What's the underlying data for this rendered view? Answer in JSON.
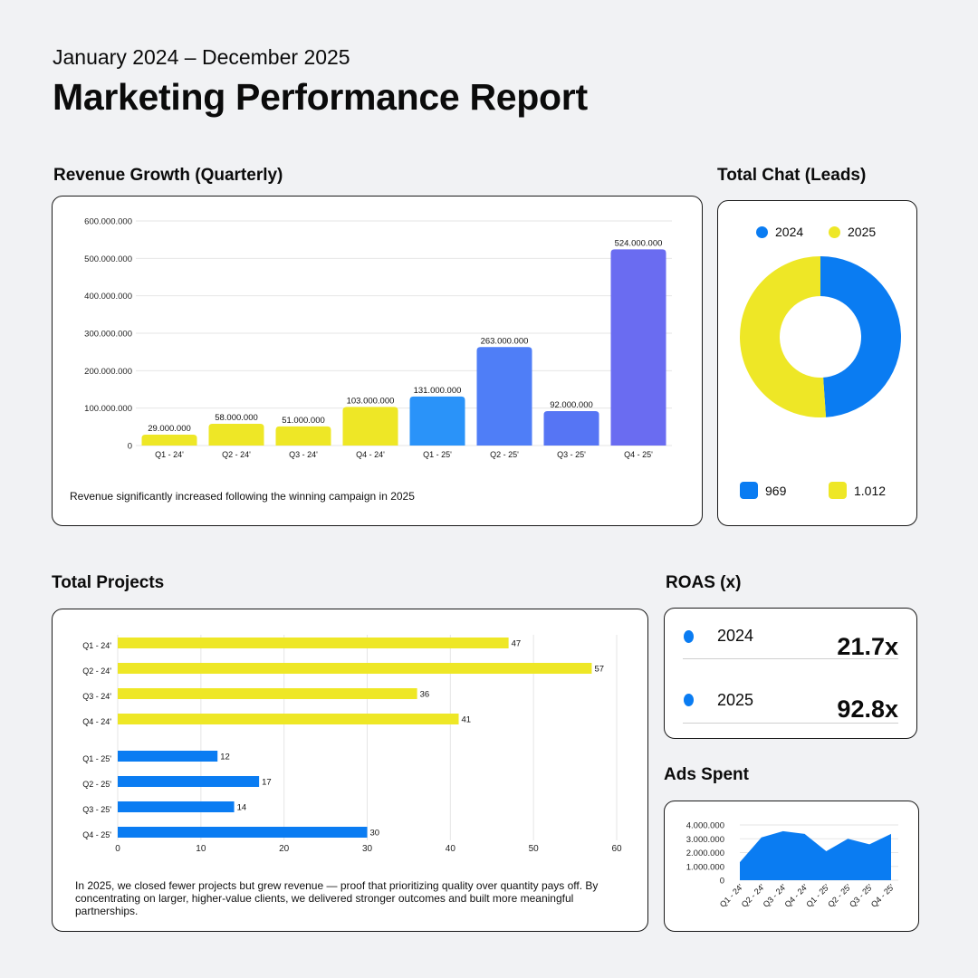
{
  "header": {
    "subtitle": "January 2024 – December 2025",
    "title": "Marketing Performance Report"
  },
  "colors": {
    "yellow": "#eee726",
    "blue_2024": "#0a7cf2",
    "bar_q1_25": "#2a93f9",
    "bar_q2_25": "#4f7ef7",
    "bar_q3_25": "#5675f4",
    "bar_q4_25": "#6a6cf1",
    "area": "#0a7cf2"
  },
  "revenue": {
    "section_title": "Revenue Growth (Quarterly)",
    "note": "Revenue significantly increased following the winning campaign in 2025"
  },
  "leads": {
    "section_title": "Total Chat (Leads)",
    "legend": [
      "2024",
      "2025"
    ],
    "totals": [
      "969",
      "1.012"
    ]
  },
  "projects": {
    "section_title": "Total Projects",
    "note": "In 2025, we closed fewer projects but grew revenue — proof that prioritizing quality over quantity pays off. By concentrating on larger, higher-value clients, we delivered stronger outcomes and built more meaningful partnerships."
  },
  "roas": {
    "section_title": "ROAS (x)",
    "rows": [
      {
        "year": "2024",
        "value": "21.7x"
      },
      {
        "year": "2025",
        "value": "92.8x"
      }
    ]
  },
  "ads": {
    "section_title": "Ads Spent"
  },
  "chart_data": [
    {
      "id": "revenue",
      "type": "bar",
      "title": "Revenue Growth (Quarterly)",
      "categories": [
        "Q1 - 24'",
        "Q2 - 24'",
        "Q3 - 24'",
        "Q4 - 24'",
        "Q1 - 25'",
        "Q2 - 25'",
        "Q3 - 25'",
        "Q4 - 25'"
      ],
      "values": [
        29000000,
        58000000,
        51000000,
        103000000,
        131000000,
        263000000,
        92000000,
        524000000
      ],
      "value_labels": [
        "29.000.000",
        "58.000.000",
        "51.000.000",
        "103.000.000",
        "131.000.000",
        "263.000.000",
        "92.000.000",
        "524.000.000"
      ],
      "bar_colors": [
        "#eee726",
        "#eee726",
        "#eee726",
        "#eee726",
        "#2a93f9",
        "#4f7ef7",
        "#5675f4",
        "#6a6cf1"
      ],
      "yticks": [
        0,
        100000000,
        200000000,
        300000000,
        400000000,
        500000000,
        600000000
      ],
      "ytick_labels": [
        "0",
        "100.000.000",
        "200.000.000",
        "300.000.000",
        "400.000.000",
        "500.000.000",
        "600.000.000"
      ],
      "ylim": [
        0,
        600000000
      ],
      "grid": true
    },
    {
      "id": "leads",
      "type": "pie",
      "title": "Total Chat (Leads)",
      "labels": [
        "2024",
        "2025"
      ],
      "values": [
        969,
        1012
      ],
      "colors": [
        "#0a7cf2",
        "#eee726"
      ],
      "donut": true
    },
    {
      "id": "projects",
      "type": "bar",
      "orientation": "horizontal",
      "title": "Total Projects",
      "categories": [
        "Q1 - 24'",
        "Q2 - 24'",
        "Q3 - 24'",
        "Q4 - 24'",
        "Q1 - 25'",
        "Q2 - 25'",
        "Q3 - 25'",
        "Q4 - 25'"
      ],
      "values": [
        47,
        57,
        36,
        41,
        12,
        17,
        14,
        30
      ],
      "bar_colors": [
        "#eee726",
        "#eee726",
        "#eee726",
        "#eee726",
        "#0a7cf2",
        "#0a7cf2",
        "#0a7cf2",
        "#0a7cf2"
      ],
      "xticks": [
        0,
        10,
        20,
        30,
        40,
        50,
        60
      ],
      "xlim": [
        0,
        60
      ],
      "grid": true
    },
    {
      "id": "ads",
      "type": "area",
      "title": "Ads Spent",
      "categories": [
        "Q1 - 24'",
        "Q2 - 24'",
        "Q3 - 24'",
        "Q4 - 24'",
        "Q1 - 25'",
        "Q2 - 25'",
        "Q3 - 25'",
        "Q4 - 25'"
      ],
      "values": [
        1300000,
        3100000,
        3550000,
        3350000,
        2100000,
        3000000,
        2600000,
        3350000
      ],
      "yticks": [
        0,
        1000000,
        2000000,
        3000000,
        4000000
      ],
      "ytick_labels": [
        "0",
        "1.000.000",
        "2.000.000",
        "3.000.000",
        "4.000.000"
      ],
      "ylim": [
        0,
        4000000
      ],
      "grid": true
    }
  ]
}
